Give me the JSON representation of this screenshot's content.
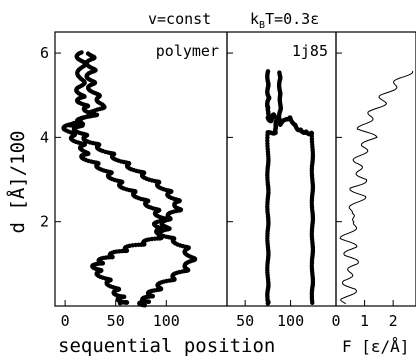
{
  "chart_data": [
    {
      "type": "scatter",
      "panel_label": "polymer",
      "xlabel": "sequential position",
      "ylabel": "d [Å]/100",
      "xlim": [
        -10,
        160
      ],
      "ylim": [
        0,
        6.5
      ],
      "xticks": [
        0,
        50,
        100
      ],
      "yticks": [
        2,
        4,
        6
      ],
      "grid": false,
      "series": [
        {
          "x": [
            15,
            16,
            16,
            15,
            15,
            16,
            20,
            28,
            18,
            10,
            5,
            2,
            8,
            15,
            20,
            18,
            28,
            38,
            45,
            52,
            60,
            70,
            78,
            86,
            92,
            98,
            100,
            98,
            90,
            78,
            65,
            55,
            45,
            38,
            32,
            30,
            35,
            42,
            48,
            52,
            55,
            57,
            58
          ],
          "y": [
            6.0,
            5.8,
            5.5,
            5.2,
            5.0,
            4.85,
            4.7,
            4.55,
            4.4,
            4.25,
            4.35,
            4.2,
            4.0,
            3.85,
            3.7,
            3.55,
            3.4,
            3.25,
            3.1,
            2.95,
            2.8,
            2.65,
            2.5,
            2.35,
            2.2,
            2.05,
            1.9,
            1.75,
            1.6,
            1.5,
            1.4,
            1.3,
            1.2,
            1.1,
            1.0,
            0.9,
            0.75,
            0.6,
            0.45,
            0.3,
            0.2,
            0.1,
            0.05
          ]
        },
        {
          "x": [
            25,
            25,
            26,
            25,
            26,
            30,
            38,
            30,
            20,
            14,
            12,
            18,
            25,
            35,
            45,
            55,
            65,
            75,
            85,
            95,
            102,
            108,
            112,
            110,
            102,
            92,
            90,
            100,
            112,
            120,
            125,
            122,
            115,
            105,
            95,
            88,
            83,
            80,
            78,
            76
          ],
          "y": [
            6.0,
            5.8,
            5.6,
            5.4,
            5.2,
            5.0,
            4.8,
            4.6,
            4.5,
            4.35,
            4.2,
            4.05,
            3.9,
            3.75,
            3.6,
            3.45,
            3.3,
            3.15,
            3.0,
            2.85,
            2.7,
            2.55,
            2.4,
            2.25,
            2.1,
            1.95,
            1.8,
            1.65,
            1.5,
            1.35,
            1.15,
            0.95,
            0.8,
            0.65,
            0.5,
            0.35,
            0.25,
            0.15,
            0.08,
            0.03
          ]
        }
      ]
    },
    {
      "type": "scatter",
      "panel_label": "1j85",
      "xlim": [
        30,
        150
      ],
      "ylim": [
        0,
        6.5
      ],
      "xticks": [
        50,
        100
      ],
      "grid": false,
      "series": [
        {
          "x": [
            75,
            75,
            75,
            76,
            74,
            76,
            75,
            78,
            82,
            85,
            83,
            84,
            75,
            75,
            75,
            75,
            75,
            75,
            75,
            75,
            75,
            75
          ],
          "y": [
            5.55,
            5.3,
            5.05,
            4.9,
            4.75,
            4.6,
            4.45,
            4.4,
            4.55,
            4.4,
            4.25,
            4.12,
            4.1,
            3.5,
            3.0,
            2.5,
            2.0,
            1.5,
            1.0,
            0.5,
            0.15,
            0.03
          ]
        },
        {
          "x": [
            88,
            88,
            88,
            89,
            88,
            88,
            96,
            100,
            104,
            108,
            112,
            116,
            120,
            124,
            124,
            124,
            124,
            124,
            124,
            124,
            124,
            124
          ],
          "y": [
            5.55,
            5.3,
            5.05,
            4.8,
            4.55,
            4.3,
            4.45,
            4.45,
            4.3,
            4.2,
            4.15,
            4.12,
            4.1,
            4.08,
            3.5,
            3.0,
            2.5,
            2.0,
            1.5,
            1.0,
            0.5,
            0.05
          ]
        }
      ]
    },
    {
      "type": "line",
      "xlabel": "F [ε/Å]",
      "xlim": [
        0,
        2.8
      ],
      "ylim": [
        0,
        6.5
      ],
      "xticks": [
        0,
        1,
        2
      ],
      "grid": false,
      "series": [
        {
          "y": [
            0.05,
            0.2,
            0.4,
            0.6,
            0.8,
            1.0,
            1.2,
            1.4,
            1.6,
            1.8,
            2.0,
            2.2,
            2.4,
            2.6,
            2.8,
            3.0,
            3.2,
            3.4,
            3.6,
            3.8,
            4.0,
            4.2,
            4.4,
            4.6,
            4.8,
            5.0,
            5.2,
            5.4,
            5.6
          ],
          "x": [
            0.2,
            0.4,
            0.6,
            0.3,
            0.5,
            0.7,
            0.4,
            0.6,
            0.3,
            0.5,
            0.8,
            0.4,
            0.7,
            0.9,
            0.6,
            1.0,
            0.8,
            0.7,
            0.9,
            1.0,
            1.3,
            0.9,
            1.1,
            1.3,
            1.6,
            1.7,
            2.0,
            2.3,
            2.6
          ]
        }
      ]
    }
  ],
  "header": {
    "condition_v": "v=const",
    "condition_kbt_k": "k",
    "condition_kbt_sub": "B",
    "condition_kbt_rest": "T=0.3ε"
  }
}
